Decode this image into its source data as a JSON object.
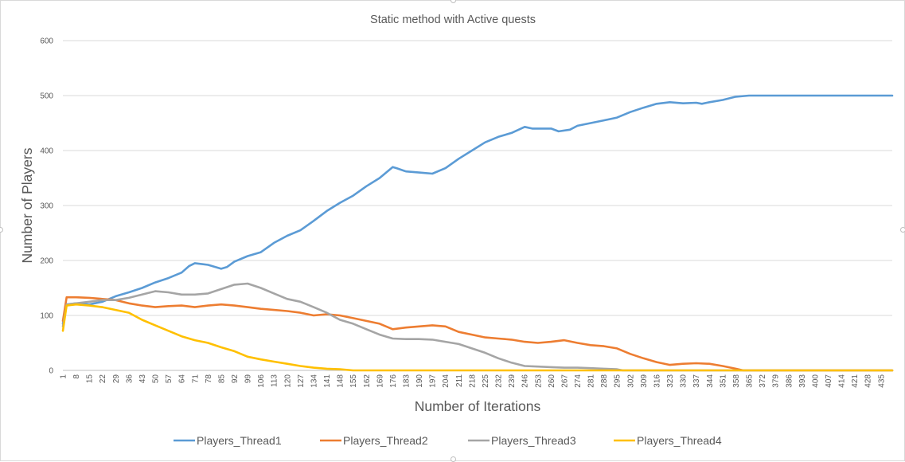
{
  "chart_data": {
    "type": "line",
    "title": "Static method with Active quests",
    "xlabel": "Number of Iterations",
    "ylabel": "Number of Players",
    "ylim": [
      0,
      600
    ],
    "yticks": [
      0,
      100,
      200,
      300,
      400,
      500,
      600
    ],
    "xlim": [
      1,
      441
    ],
    "xtick_labels": [
      1,
      8,
      15,
      22,
      29,
      36,
      43,
      50,
      57,
      64,
      71,
      78,
      85,
      92,
      99,
      106,
      113,
      120,
      127,
      134,
      141,
      148,
      155,
      162,
      169,
      176,
      183,
      190,
      197,
      204,
      211,
      218,
      225,
      232,
      239,
      246,
      253,
      260,
      267,
      274,
      281,
      288,
      295,
      302,
      309,
      316,
      323,
      330,
      337,
      344,
      351,
      358,
      365,
      372,
      379,
      386,
      393,
      400,
      407,
      414,
      421,
      428,
      435
    ],
    "grid": "horizontal",
    "legend_position": "bottom",
    "series": [
      {
        "name": "Players_Thread1",
        "color": "#5b9bd5",
        "points": [
          [
            1,
            85
          ],
          [
            3,
            120
          ],
          [
            8,
            122
          ],
          [
            15,
            120
          ],
          [
            22,
            125
          ],
          [
            29,
            135
          ],
          [
            36,
            142
          ],
          [
            43,
            150
          ],
          [
            50,
            160
          ],
          [
            57,
            168
          ],
          [
            64,
            178
          ],
          [
            68,
            190
          ],
          [
            71,
            195
          ],
          [
            78,
            192
          ],
          [
            85,
            185
          ],
          [
            88,
            188
          ],
          [
            92,
            198
          ],
          [
            99,
            208
          ],
          [
            106,
            215
          ],
          [
            113,
            232
          ],
          [
            120,
            245
          ],
          [
            127,
            255
          ],
          [
            134,
            272
          ],
          [
            141,
            290
          ],
          [
            148,
            305
          ],
          [
            155,
            318
          ],
          [
            162,
            335
          ],
          [
            169,
            350
          ],
          [
            176,
            370
          ],
          [
            178,
            368
          ],
          [
            183,
            362
          ],
          [
            190,
            360
          ],
          [
            197,
            358
          ],
          [
            204,
            368
          ],
          [
            211,
            385
          ],
          [
            218,
            400
          ],
          [
            225,
            415
          ],
          [
            232,
            425
          ],
          [
            239,
            432
          ],
          [
            246,
            443
          ],
          [
            250,
            440
          ],
          [
            260,
            440
          ],
          [
            264,
            435
          ],
          [
            270,
            438
          ],
          [
            274,
            445
          ],
          [
            281,
            450
          ],
          [
            288,
            455
          ],
          [
            295,
            460
          ],
          [
            302,
            470
          ],
          [
            309,
            478
          ],
          [
            316,
            485
          ],
          [
            323,
            488
          ],
          [
            330,
            486
          ],
          [
            337,
            487
          ],
          [
            340,
            485
          ],
          [
            344,
            488
          ],
          [
            351,
            492
          ],
          [
            358,
            498
          ],
          [
            365,
            500
          ],
          [
            441,
            500
          ]
        ]
      },
      {
        "name": "Players_Thread2",
        "color": "#ed7d31",
        "points": [
          [
            1,
            90
          ],
          [
            3,
            133
          ],
          [
            8,
            133
          ],
          [
            15,
            132
          ],
          [
            22,
            130
          ],
          [
            29,
            128
          ],
          [
            36,
            122
          ],
          [
            43,
            118
          ],
          [
            50,
            115
          ],
          [
            57,
            117
          ],
          [
            64,
            118
          ],
          [
            71,
            115
          ],
          [
            78,
            118
          ],
          [
            85,
            120
          ],
          [
            92,
            118
          ],
          [
            99,
            115
          ],
          [
            106,
            112
          ],
          [
            113,
            110
          ],
          [
            120,
            108
          ],
          [
            127,
            105
          ],
          [
            134,
            100
          ],
          [
            141,
            102
          ],
          [
            148,
            100
          ],
          [
            155,
            95
          ],
          [
            162,
            90
          ],
          [
            169,
            85
          ],
          [
            176,
            75
          ],
          [
            183,
            78
          ],
          [
            190,
            80
          ],
          [
            197,
            82
          ],
          [
            204,
            80
          ],
          [
            211,
            70
          ],
          [
            218,
            65
          ],
          [
            225,
            60
          ],
          [
            232,
            58
          ],
          [
            239,
            56
          ],
          [
            246,
            52
          ],
          [
            253,
            50
          ],
          [
            260,
            52
          ],
          [
            267,
            55
          ],
          [
            274,
            50
          ],
          [
            281,
            46
          ],
          [
            288,
            44
          ],
          [
            295,
            40
          ],
          [
            302,
            30
          ],
          [
            309,
            22
          ],
          [
            316,
            15
          ],
          [
            323,
            10
          ],
          [
            330,
            12
          ],
          [
            337,
            13
          ],
          [
            344,
            12
          ],
          [
            351,
            8
          ],
          [
            358,
            3
          ],
          [
            362,
            0
          ],
          [
            441,
            0
          ]
        ]
      },
      {
        "name": "Players_Thread3",
        "color": "#a5a5a5",
        "points": [
          [
            1,
            80
          ],
          [
            3,
            120
          ],
          [
            8,
            122
          ],
          [
            15,
            125
          ],
          [
            22,
            128
          ],
          [
            29,
            128
          ],
          [
            36,
            132
          ],
          [
            43,
            138
          ],
          [
            50,
            144
          ],
          [
            57,
            142
          ],
          [
            64,
            138
          ],
          [
            71,
            138
          ],
          [
            78,
            140
          ],
          [
            85,
            148
          ],
          [
            92,
            156
          ],
          [
            99,
            158
          ],
          [
            106,
            150
          ],
          [
            113,
            140
          ],
          [
            120,
            130
          ],
          [
            127,
            125
          ],
          [
            134,
            115
          ],
          [
            141,
            105
          ],
          [
            148,
            92
          ],
          [
            155,
            85
          ],
          [
            162,
            75
          ],
          [
            169,
            65
          ],
          [
            176,
            58
          ],
          [
            183,
            57
          ],
          [
            190,
            57
          ],
          [
            197,
            56
          ],
          [
            204,
            52
          ],
          [
            211,
            48
          ],
          [
            218,
            40
          ],
          [
            225,
            32
          ],
          [
            232,
            22
          ],
          [
            239,
            14
          ],
          [
            246,
            8
          ],
          [
            253,
            7
          ],
          [
            260,
            6
          ],
          [
            267,
            5
          ],
          [
            274,
            5
          ],
          [
            281,
            4
          ],
          [
            288,
            3
          ],
          [
            295,
            2
          ],
          [
            298,
            0
          ],
          [
            441,
            0
          ]
        ]
      },
      {
        "name": "Players_Thread4",
        "color": "#ffc000",
        "points": [
          [
            1,
            72
          ],
          [
            3,
            118
          ],
          [
            8,
            120
          ],
          [
            15,
            118
          ],
          [
            22,
            115
          ],
          [
            29,
            110
          ],
          [
            36,
            105
          ],
          [
            43,
            92
          ],
          [
            50,
            82
          ],
          [
            57,
            72
          ],
          [
            64,
            62
          ],
          [
            71,
            55
          ],
          [
            78,
            50
          ],
          [
            85,
            42
          ],
          [
            92,
            35
          ],
          [
            99,
            25
          ],
          [
            106,
            20
          ],
          [
            113,
            16
          ],
          [
            120,
            12
          ],
          [
            127,
            8
          ],
          [
            134,
            5
          ],
          [
            141,
            3
          ],
          [
            148,
            2
          ],
          [
            155,
            0
          ],
          [
            441,
            0
          ]
        ]
      }
    ]
  }
}
